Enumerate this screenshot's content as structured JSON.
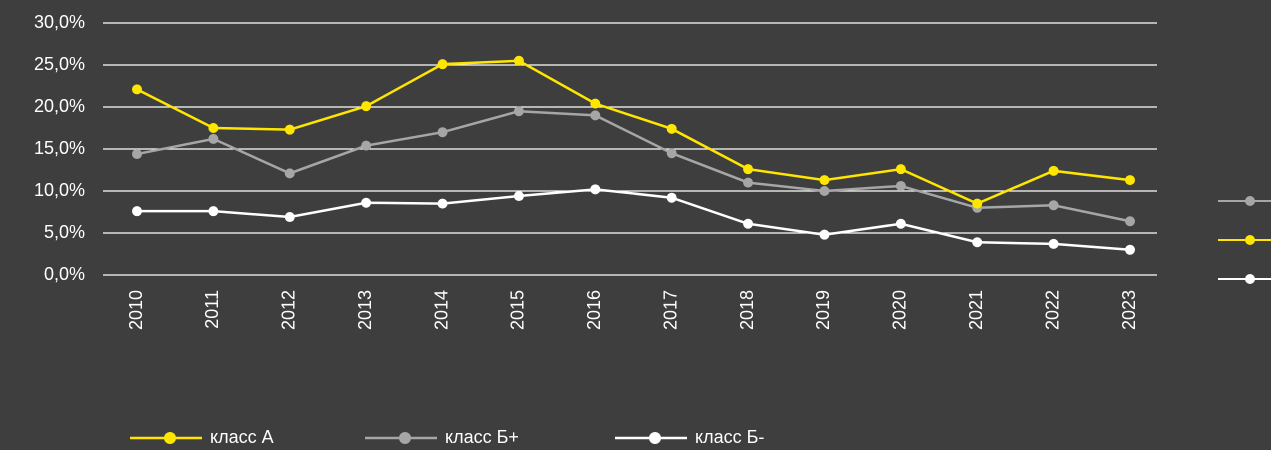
{
  "chart_data": {
    "type": "line",
    "categories": [
      "2010",
      "2011",
      "2012",
      "2013",
      "2014",
      "2015",
      "2016",
      "2017",
      "2018",
      "2019",
      "2020",
      "2021",
      "2022",
      "2023"
    ],
    "series": [
      {
        "name": "класс А",
        "color": "#ffe600",
        "values": [
          22.1,
          17.5,
          17.3,
          20.1,
          25.1,
          25.5,
          20.4,
          17.4,
          12.6,
          11.3,
          12.6,
          8.5,
          12.4,
          11.3
        ]
      },
      {
        "name": "класс Б+",
        "color": "#a6a6a6",
        "values": [
          14.4,
          16.2,
          12.1,
          15.4,
          17.0,
          19.5,
          19.0,
          14.5,
          11.0,
          10.0,
          10.6,
          8.0,
          8.3,
          6.4
        ]
      },
      {
        "name": "класс Б-",
        "color": "#ffffff",
        "values": [
          7.6,
          7.6,
          6.9,
          8.6,
          8.5,
          9.4,
          10.2,
          9.2,
          6.1,
          4.8,
          6.1,
          3.9,
          3.7,
          3.0
        ]
      }
    ],
    "ylim": [
      0,
      30
    ],
    "yticks": [
      {
        "value": 0,
        "label": "0,0%"
      },
      {
        "value": 5,
        "label": "5,0%"
      },
      {
        "value": 10,
        "label": "10,0%"
      },
      {
        "value": 15,
        "label": "15,0%"
      },
      {
        "value": 20,
        "label": "20,0%"
      },
      {
        "value": 25,
        "label": "25,0%"
      },
      {
        "value": 30,
        "label": "30,0%"
      }
    ],
    "grid": true,
    "legend": "bottom"
  }
}
